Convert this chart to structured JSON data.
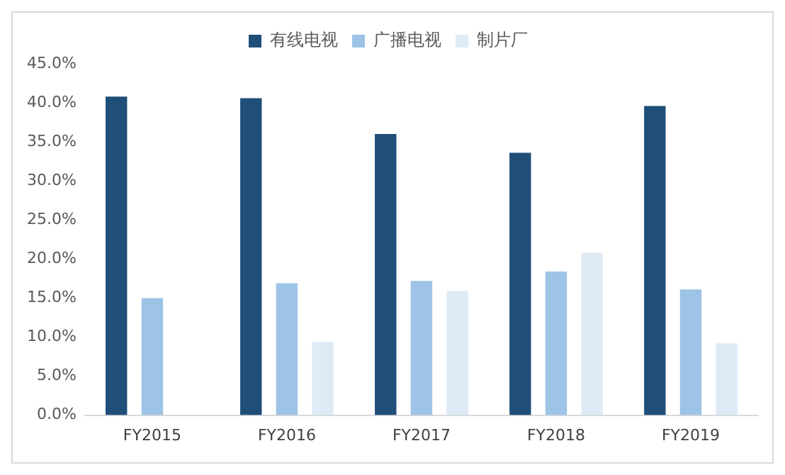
{
  "chart_data": {
    "type": "bar",
    "categories": [
      "FY2015",
      "FY2016",
      "FY2017",
      "FY2018",
      "FY2019"
    ],
    "series": [
      {
        "name": "有线电视",
        "color": "#1f4e79",
        "values": [
          40.8,
          40.6,
          36.0,
          33.6,
          39.6
        ]
      },
      {
        "name": "广播电视",
        "color": "#9dc3e6",
        "values": [
          15.0,
          16.9,
          17.2,
          18.4,
          16.1
        ]
      },
      {
        "name": "制片厂",
        "color": "#deebf7",
        "values": [
          null,
          9.4,
          15.9,
          20.8,
          9.2
        ]
      }
    ],
    "ylim": [
      0,
      45
    ],
    "yticks": [
      {
        "value": 0,
        "label": "0.0%"
      },
      {
        "value": 5,
        "label": "5.0%"
      },
      {
        "value": 10,
        "label": "10.0%"
      },
      {
        "value": 15,
        "label": "15.0%"
      },
      {
        "value": 20,
        "label": "20.0%"
      },
      {
        "value": 25,
        "label": "25.0%"
      },
      {
        "value": 30,
        "label": "30.0%"
      },
      {
        "value": 35,
        "label": "35.0%"
      },
      {
        "value": 40,
        "label": "40.0%"
      },
      {
        "value": 45,
        "label": "45.0%"
      }
    ],
    "grid": false,
    "legend": "top"
  }
}
